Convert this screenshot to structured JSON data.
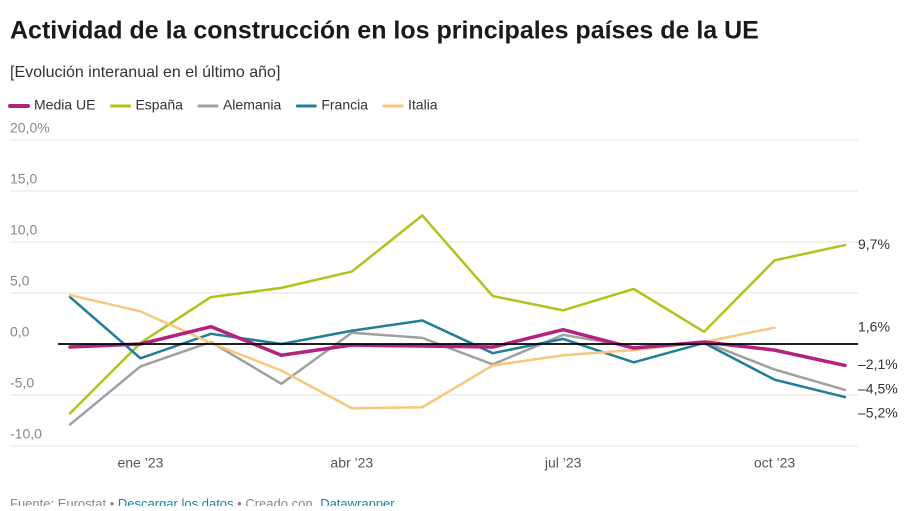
{
  "chart_data": {
    "type": "line",
    "title": "Actividad de la construcción en los principales países de la UE",
    "subtitle": "[Evolución interanual en el último año]",
    "footer": {
      "source": "Fuente: Eurostat",
      "download": "Descargar los datos",
      "created": "Creado con",
      "tool": "Datawrapper"
    },
    "categories": [
      null,
      "ene ’23",
      null,
      null,
      "abr ’23",
      null,
      null,
      "jul ’23",
      null,
      null,
      "oct ’23",
      null
    ],
    "ylim": [
      -10,
      20
    ],
    "yticks": [
      {
        "value": -10,
        "label": "-10,0"
      },
      {
        "value": -5,
        "label": "-5,0"
      },
      {
        "value": 0,
        "label": "0,0"
      },
      {
        "value": 5,
        "label": "5,0"
      },
      {
        "value": 10,
        "label": "10,0"
      },
      {
        "value": 15,
        "label": "15,0"
      },
      {
        "value": 20,
        "label": "20,0%"
      }
    ],
    "grid": true,
    "legend": "top-left",
    "series": [
      {
        "name": "Media UE",
        "color": "#b5217f",
        "values": [
          -0.3,
          0,
          1.7,
          -1.1,
          -0.1,
          -0.2,
          -0.3,
          1.4,
          -0.4,
          0.2,
          -0.6,
          -2.1
        ],
        "value_labels": [
          null,
          null,
          null,
          null,
          null,
          null,
          null,
          null,
          null,
          null,
          null,
          "–2,1%"
        ]
      },
      {
        "name": "España",
        "color": "#a6c81b",
        "values": [
          -6.8,
          0.1,
          4.6,
          5.5,
          7.1,
          12.6,
          4.7,
          3.3,
          5.4,
          1.2,
          8.2,
          9.7
        ],
        "value_labels": [
          null,
          null,
          null,
          null,
          null,
          null,
          null,
          null,
          null,
          null,
          null,
          "9,7%"
        ]
      },
      {
        "name": "Alemania",
        "color": "#a0a0a0",
        "values": [
          -7.9,
          -2.2,
          0.2,
          -3.9,
          1.1,
          0.6,
          -2.0,
          0.9,
          -0.3,
          0.2,
          -2.5,
          -4.5
        ],
        "value_labels": [
          null,
          null,
          null,
          null,
          null,
          null,
          null,
          null,
          null,
          null,
          null,
          "–4,5%"
        ]
      },
      {
        "name": "Francia",
        "color": "#217e96",
        "values": [
          4.6,
          -1.4,
          1.0,
          0,
          1.3,
          2.3,
          -0.9,
          0.5,
          -1.8,
          0.1,
          -3.5,
          -5.2
        ],
        "value_labels": [
          null,
          null,
          null,
          null,
          null,
          null,
          null,
          null,
          null,
          null,
          null,
          "–5,2%"
        ]
      },
      {
        "name": "Italia",
        "color": "#f8c77d",
        "values": [
          4.8,
          3.2,
          0.1,
          -2.6,
          -6.3,
          -6.2,
          -2.1,
          -1.1,
          -0.6,
          0.2,
          1.6,
          null
        ],
        "value_labels": [
          null,
          null,
          null,
          null,
          null,
          null,
          null,
          null,
          null,
          null,
          "1,6%",
          null
        ]
      }
    ]
  }
}
